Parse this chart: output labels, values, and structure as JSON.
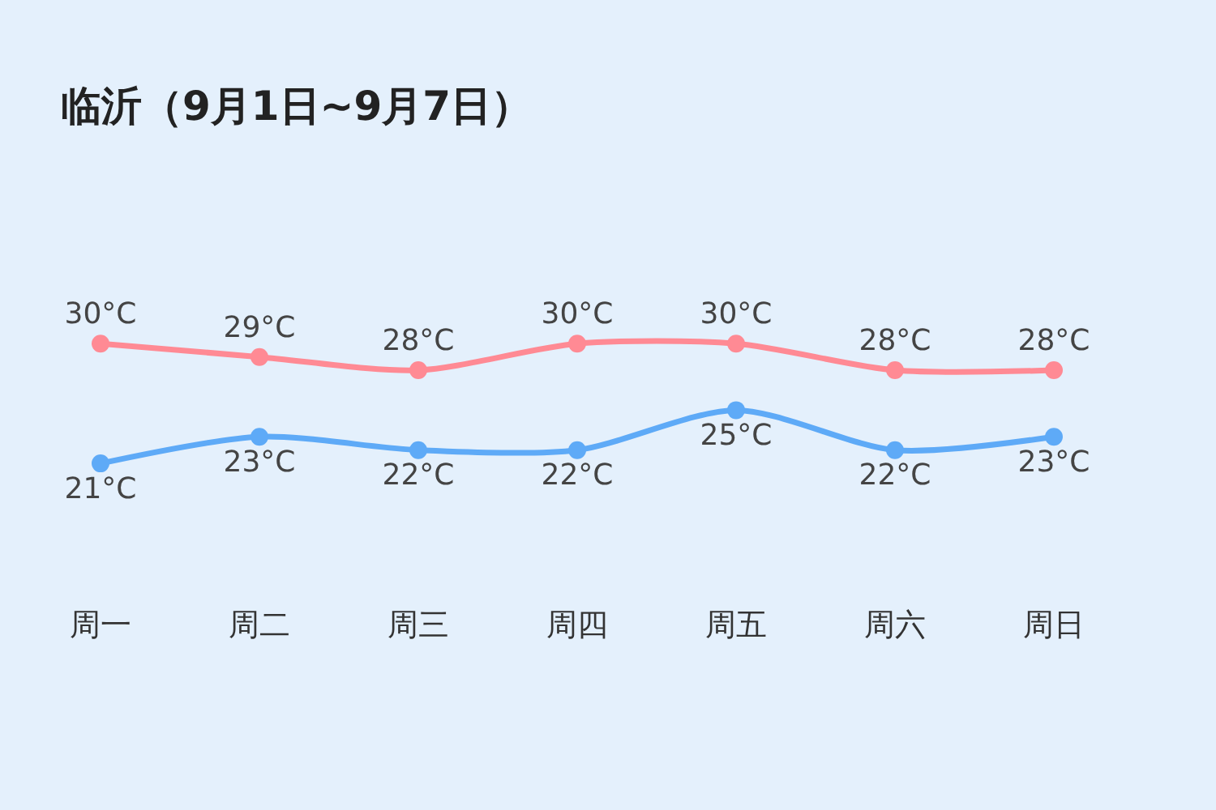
{
  "chart_data": {
    "type": "line",
    "title": "临沂（9月1日~9月7日）",
    "categories": [
      "周一",
      "周二",
      "周三",
      "周四",
      "周五",
      "周六",
      "周日"
    ],
    "series": [
      {
        "color": "#ff8a94",
        "values": [
          30,
          29,
          28,
          30,
          30,
          28,
          28
        ],
        "value_labels": [
          "30°C",
          "29°C",
          "28°C",
          "30°C",
          "30°C",
          "28°C",
          "28°C"
        ]
      },
      {
        "color": "#5eaaf7",
        "values": [
          21,
          23,
          22,
          22,
          25,
          22,
          23
        ],
        "value_labels": [
          "21°C",
          "23°C",
          "22°C",
          "22°C",
          "25°C",
          "22°C",
          "23°C"
        ]
      }
    ],
    "marker": "circle",
    "line_style": "solid",
    "grid": false,
    "tick_labels": "x"
  }
}
